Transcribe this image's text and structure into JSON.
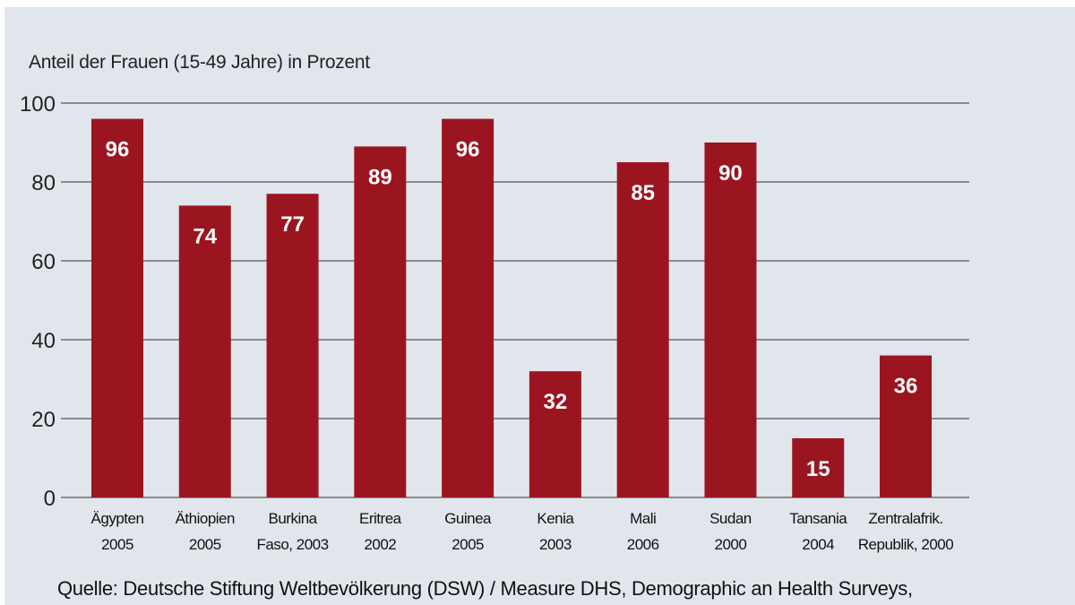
{
  "chart_data": {
    "type": "bar",
    "ylabel": "Anteil der Frauen (15-49 Jahre) in Prozent",
    "categories": [
      [
        "Ägypten",
        "2005"
      ],
      [
        "Äthiopien",
        "2005"
      ],
      [
        "Burkina",
        "Faso, 2003"
      ],
      [
        "Eritrea",
        "2002"
      ],
      [
        "Guinea",
        "2005"
      ],
      [
        "Kenia",
        "2003"
      ],
      [
        "Mali",
        "2006"
      ],
      [
        "Sudan",
        "2000"
      ],
      [
        "Tansania",
        "2004"
      ],
      [
        "Zentralafrik.",
        "Republik, 2000"
      ]
    ],
    "values": [
      96,
      74,
      77,
      89,
      96,
      32,
      85,
      90,
      15,
      36
    ],
    "ylim": [
      0,
      100
    ],
    "yticks": [
      0,
      20,
      40,
      60,
      80,
      100
    ],
    "grid": true,
    "bar_color": "#9b1520",
    "source": "Quelle: Deutsche Stiftung Weltbevölkerung (DSW) / Measure DHS, Demographic an Health Surveys,"
  }
}
